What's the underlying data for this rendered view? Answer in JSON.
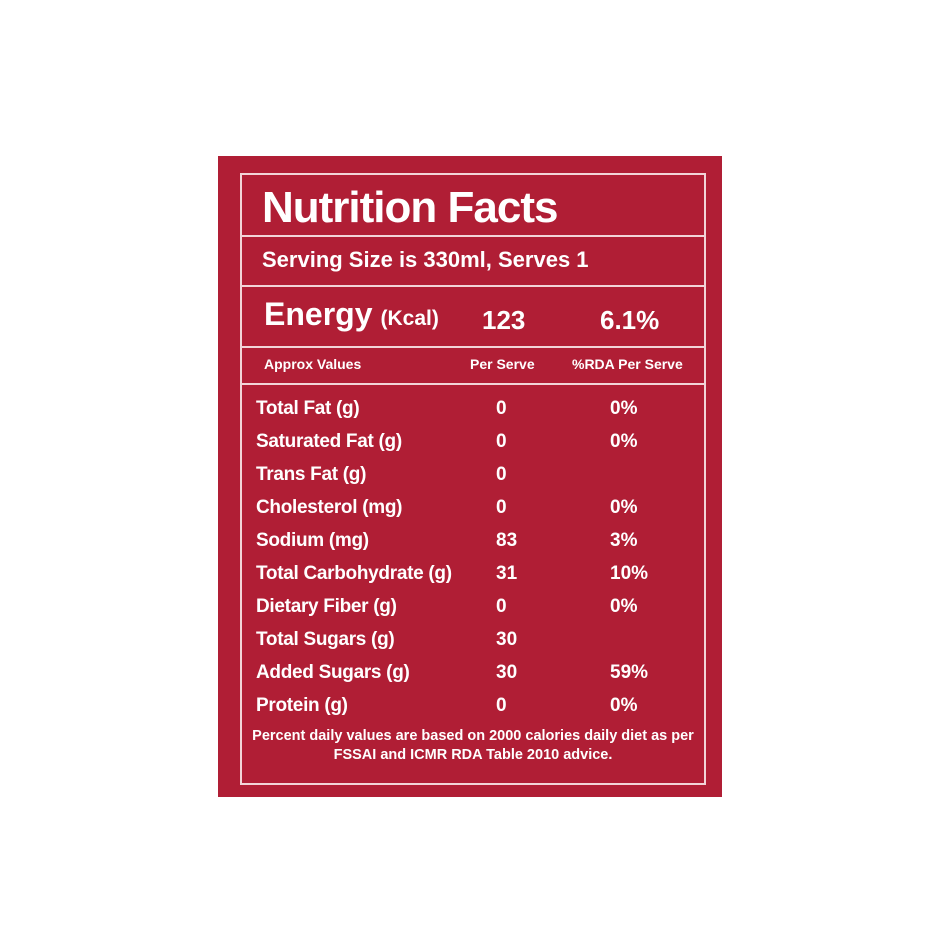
{
  "label": {
    "title": "Nutrition Facts",
    "serving": "Serving Size is 330ml, Serves 1",
    "energy": {
      "label": "Energy",
      "unit": "(Kcal)",
      "per_serve": "123",
      "rda": "6.1%"
    },
    "headers": {
      "name": "Approx Values",
      "per_serve": "Per Serve",
      "rda": "%RDA Per Serve"
    },
    "rows": [
      {
        "name": "Total Fat (g)",
        "per_serve": "0",
        "rda": "0%"
      },
      {
        "name": "Saturated Fat (g)",
        "per_serve": "0",
        "rda": "0%"
      },
      {
        "name": "Trans Fat (g)",
        "per_serve": "0",
        "rda": ""
      },
      {
        "name": "Cholesterol (mg)",
        "per_serve": "0",
        "rda": "0%"
      },
      {
        "name": "Sodium (mg)",
        "per_serve": "83",
        "rda": "3%"
      },
      {
        "name": "Total Carbohydrate (g)",
        "per_serve": "31",
        "rda": "10%"
      },
      {
        "name": "Dietary Fiber (g)",
        "per_serve": "0",
        "rda": "0%"
      },
      {
        "name": "Total Sugars (g)",
        "per_serve": "30",
        "rda": ""
      },
      {
        "name": "Added Sugars (g)",
        "per_serve": "30",
        "rda": "59%"
      },
      {
        "name": "Protein (g)",
        "per_serve": "0",
        "rda": "0%"
      }
    ],
    "footnote": "Percent daily values are based on 2000 calories daily diet as per FSSAI and ICMR RDA Table 2010 advice."
  },
  "colors": {
    "panel": "#b01e35",
    "border": "#f2d4d8",
    "text": "#ffffff"
  }
}
